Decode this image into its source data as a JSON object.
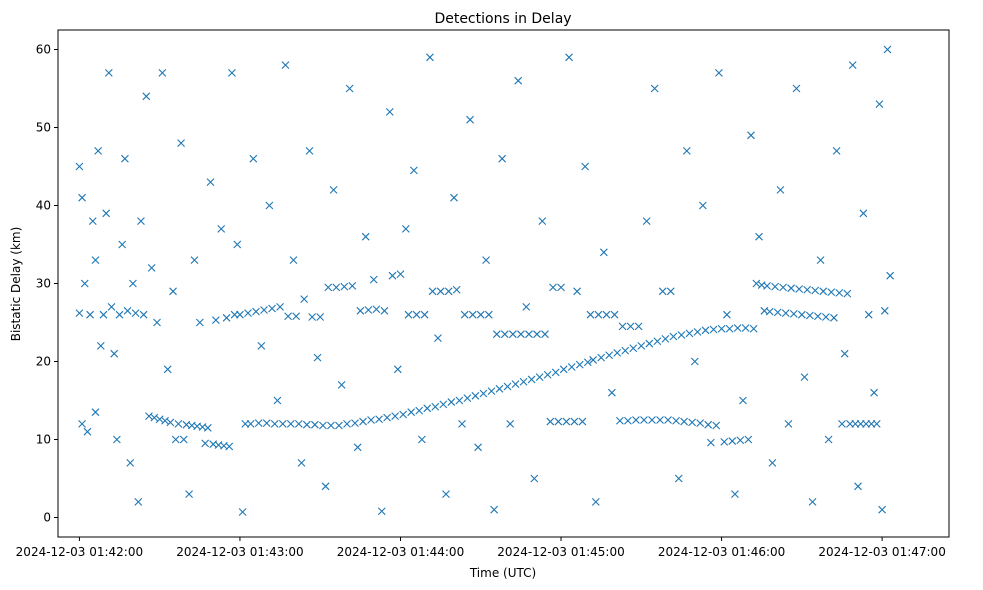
{
  "chart_data": {
    "type": "scatter",
    "title": "Detections in Delay",
    "xlabel": "Time (UTC)",
    "ylabel": "Bistatic Delay (km)",
    "x_unit": "seconds after 2024-12-03 01:42:00 UTC",
    "xlim": [
      -8,
      325
    ],
    "ylim": [
      -2.5,
      62.5
    ],
    "x_ticks": [
      {
        "value": 0,
        "label": "2024-12-03 01:42:00"
      },
      {
        "value": 60,
        "label": "2024-12-03 01:43:00"
      },
      {
        "value": 120,
        "label": "2024-12-03 01:44:00"
      },
      {
        "value": 180,
        "label": "2024-12-03 01:45:00"
      },
      {
        "value": 240,
        "label": "2024-12-03 01:46:00"
      },
      {
        "value": 300,
        "label": "2024-12-03 01:47:00"
      }
    ],
    "y_ticks": [
      0,
      10,
      20,
      30,
      40,
      50,
      60
    ],
    "marker": "x",
    "color": "#1f77b4",
    "grid": false,
    "series": [
      {
        "points": [
          [
            0.0,
            26.2
          ],
          [
            0.0,
            45.0
          ],
          [
            1.0,
            12.0
          ],
          [
            1.0,
            41.0
          ],
          [
            2.0,
            30.0
          ],
          [
            3.0,
            11.0
          ],
          [
            4.0,
            26.0
          ],
          [
            5.0,
            38.0
          ],
          [
            6.0,
            33.0
          ],
          [
            6.0,
            13.5
          ],
          [
            7.0,
            47.0
          ],
          [
            8.0,
            22.0
          ],
          [
            9.0,
            26.0
          ],
          [
            10.0,
            39.0
          ],
          [
            11.0,
            57.0
          ],
          [
            12.0,
            27.0
          ],
          [
            13.0,
            21.0
          ],
          [
            14.0,
            10.0
          ],
          [
            15.0,
            26.0
          ],
          [
            16.0,
            35.0
          ],
          [
            17.0,
            46.0
          ],
          [
            18.0,
            26.5
          ],
          [
            19.0,
            7.0
          ],
          [
            20.0,
            30.0
          ],
          [
            21.0,
            26.2
          ],
          [
            22.0,
            2.0
          ],
          [
            23.0,
            38.0
          ],
          [
            24.0,
            26.0
          ],
          [
            25.0,
            54.0
          ],
          [
            26.0,
            13.0
          ],
          [
            27.0,
            32.0
          ],
          [
            28.0,
            12.8
          ],
          [
            29.0,
            25.0
          ],
          [
            30.0,
            12.6
          ],
          [
            31.0,
            57.0
          ],
          [
            32.0,
            12.4
          ],
          [
            33.0,
            19.0
          ],
          [
            34.0,
            12.2
          ],
          [
            35.0,
            29.0
          ],
          [
            36.0,
            10.0
          ],
          [
            37.0,
            12.0
          ],
          [
            38.0,
            48.0
          ],
          [
            39.0,
            10.0
          ],
          [
            40.0,
            11.9
          ],
          [
            41.0,
            3.0
          ],
          [
            42.0,
            11.8
          ],
          [
            43.0,
            33.0
          ],
          [
            44.0,
            11.7
          ],
          [
            45.0,
            25.0
          ],
          [
            46.0,
            11.6
          ],
          [
            47.0,
            9.5
          ],
          [
            48.0,
            11.5
          ],
          [
            49.0,
            43.0
          ],
          [
            50.0,
            9.4
          ],
          [
            51.0,
            25.3
          ],
          [
            52.0,
            9.3
          ],
          [
            53.0,
            37.0
          ],
          [
            54.0,
            9.2
          ],
          [
            55.0,
            25.6
          ],
          [
            56.0,
            9.1
          ],
          [
            57.0,
            57.0
          ],
          [
            58.0,
            26.0
          ],
          [
            59.0,
            35.0
          ],
          [
            60.0,
            26.0
          ],
          [
            61.0,
            0.7
          ],
          [
            62.0,
            12.0
          ],
          [
            63.0,
            26.2
          ],
          [
            64.0,
            12.0
          ],
          [
            65.0,
            46.0
          ],
          [
            66.0,
            26.4
          ],
          [
            67.0,
            12.1
          ],
          [
            68.0,
            22.0
          ],
          [
            69.0,
            26.6
          ],
          [
            70.0,
            12.1
          ],
          [
            71.0,
            40.0
          ],
          [
            72.0,
            26.8
          ],
          [
            73.0,
            12.0
          ],
          [
            74.0,
            15.0
          ],
          [
            75.0,
            27.0
          ],
          [
            76.0,
            12.0
          ],
          [
            77.0,
            58.0
          ],
          [
            78.0,
            25.8
          ],
          [
            79.0,
            12.0
          ],
          [
            80.0,
            33.0
          ],
          [
            81.0,
            25.8
          ],
          [
            82.0,
            12.0
          ],
          [
            83.0,
            7.0
          ],
          [
            84.0,
            28.0
          ],
          [
            85.0,
            11.9
          ],
          [
            86.0,
            47.0
          ],
          [
            87.0,
            25.7
          ],
          [
            88.0,
            11.9
          ],
          [
            89.0,
            20.5
          ],
          [
            90.0,
            25.7
          ],
          [
            91.0,
            11.8
          ],
          [
            92.0,
            4.0
          ],
          [
            93.0,
            29.5
          ],
          [
            94.0,
            11.8
          ],
          [
            95.0,
            42.0
          ],
          [
            96.0,
            29.5
          ],
          [
            97.0,
            11.8
          ],
          [
            98.0,
            17.0
          ],
          [
            99.0,
            29.6
          ],
          [
            100.0,
            12.0
          ],
          [
            101.0,
            55.0
          ],
          [
            102.0,
            29.7
          ],
          [
            103.0,
            12.1
          ],
          [
            104.0,
            9.0
          ],
          [
            105.0,
            26.5
          ],
          [
            106.0,
            12.3
          ],
          [
            107.0,
            36.0
          ],
          [
            108.0,
            26.6
          ],
          [
            109.0,
            12.5
          ],
          [
            110.0,
            30.5
          ],
          [
            111.0,
            26.7
          ],
          [
            112.0,
            12.6
          ],
          [
            113.0,
            0.8
          ],
          [
            114.0,
            26.5
          ],
          [
            115.0,
            12.8
          ],
          [
            116.0,
            52.0
          ],
          [
            117.0,
            31.0
          ],
          [
            118.0,
            13.0
          ],
          [
            119.0,
            19.0
          ],
          [
            120.0,
            31.2
          ],
          [
            121.0,
            13.2
          ],
          [
            122.0,
            37.0
          ],
          [
            123.0,
            26.0
          ],
          [
            124.0,
            13.5
          ],
          [
            125.0,
            44.5
          ],
          [
            126.0,
            26.0
          ],
          [
            127.0,
            13.7
          ],
          [
            128.0,
            10.0
          ],
          [
            129.0,
            26.0
          ],
          [
            130.0,
            14.0
          ],
          [
            131.0,
            59.0
          ],
          [
            132.0,
            29.0
          ],
          [
            133.0,
            14.2
          ],
          [
            134.0,
            23.0
          ],
          [
            135.0,
            29.0
          ],
          [
            136.0,
            14.5
          ],
          [
            137.0,
            3.0
          ],
          [
            138.0,
            29.0
          ],
          [
            139.0,
            14.8
          ],
          [
            140.0,
            41.0
          ],
          [
            141.0,
            29.2
          ],
          [
            142.0,
            15.0
          ],
          [
            143.0,
            12.0
          ],
          [
            144.0,
            26.0
          ],
          [
            145.0,
            15.3
          ],
          [
            146.0,
            51.0
          ],
          [
            147.0,
            26.0
          ],
          [
            148.0,
            15.6
          ],
          [
            149.0,
            9.0
          ],
          [
            150.0,
            26.0
          ],
          [
            151.0,
            15.9
          ],
          [
            152.0,
            33.0
          ],
          [
            153.0,
            26.0
          ],
          [
            154.0,
            16.2
          ],
          [
            155.0,
            1.0
          ],
          [
            156.0,
            23.5
          ],
          [
            157.0,
            16.5
          ],
          [
            158.0,
            46.0
          ],
          [
            159.0,
            23.5
          ],
          [
            160.0,
            16.8
          ],
          [
            161.0,
            12.0
          ],
          [
            162.0,
            23.5
          ],
          [
            163.0,
            17.1
          ],
          [
            164.0,
            56.0
          ],
          [
            165.0,
            23.5
          ],
          [
            166.0,
            17.4
          ],
          [
            167.0,
            27.0
          ],
          [
            168.0,
            23.5
          ],
          [
            169.0,
            17.7
          ],
          [
            170.0,
            5.0
          ],
          [
            171.0,
            23.5
          ],
          [
            172.0,
            18.0
          ],
          [
            173.0,
            38.0
          ],
          [
            174.0,
            23.5
          ],
          [
            175.0,
            18.3
          ],
          [
            176.0,
            12.3
          ],
          [
            177.0,
            29.5
          ],
          [
            178.0,
            18.6
          ],
          [
            179.0,
            12.3
          ],
          [
            180.0,
            29.5
          ],
          [
            181.0,
            19.0
          ],
          [
            182.0,
            12.3
          ],
          [
            183.0,
            59.0
          ],
          [
            184.0,
            19.3
          ],
          [
            185.0,
            12.3
          ],
          [
            186.0,
            29.0
          ],
          [
            187.0,
            19.6
          ],
          [
            188.0,
            12.3
          ],
          [
            189.0,
            45.0
          ],
          [
            190.0,
            19.9
          ],
          [
            191.0,
            26.0
          ],
          [
            192.0,
            20.2
          ],
          [
            193.0,
            2.0
          ],
          [
            194.0,
            26.0
          ],
          [
            195.0,
            20.5
          ],
          [
            196.0,
            34.0
          ],
          [
            197.0,
            26.0
          ],
          [
            198.0,
            20.8
          ],
          [
            199.0,
            16.0
          ],
          [
            200.0,
            26.0
          ],
          [
            201.0,
            21.1
          ],
          [
            202.0,
            12.4
          ],
          [
            203.0,
            24.5
          ],
          [
            204.0,
            21.4
          ],
          [
            205.0,
            12.4
          ],
          [
            206.0,
            24.5
          ],
          [
            207.0,
            21.7
          ],
          [
            208.0,
            12.5
          ],
          [
            209.0,
            24.5
          ],
          [
            210.0,
            22.0
          ],
          [
            211.0,
            12.5
          ],
          [
            212.0,
            38.0
          ],
          [
            213.0,
            22.3
          ],
          [
            214.0,
            12.5
          ],
          [
            215.0,
            55.0
          ],
          [
            216.0,
            22.6
          ],
          [
            217.0,
            12.5
          ],
          [
            218.0,
            29.0
          ],
          [
            219.0,
            22.9
          ],
          [
            220.0,
            12.5
          ],
          [
            221.0,
            29.0
          ],
          [
            222.0,
            23.2
          ],
          [
            223.0,
            12.4
          ],
          [
            224.0,
            5.0
          ],
          [
            225.0,
            23.4
          ],
          [
            226.0,
            12.3
          ],
          [
            227.0,
            47.0
          ],
          [
            228.0,
            23.6
          ],
          [
            229.0,
            12.2
          ],
          [
            230.0,
            20.0
          ],
          [
            231.0,
            23.8
          ],
          [
            232.0,
            12.1
          ],
          [
            233.0,
            40.0
          ],
          [
            234.0,
            24.0
          ],
          [
            235.0,
            11.9
          ],
          [
            236.0,
            9.6
          ],
          [
            237.0,
            24.1
          ],
          [
            238.0,
            11.8
          ],
          [
            239.0,
            57.0
          ],
          [
            240.0,
            24.2
          ],
          [
            241.0,
            9.7
          ],
          [
            242.0,
            26.0
          ],
          [
            243.0,
            24.2
          ],
          [
            244.0,
            9.8
          ],
          [
            245.0,
            3.0
          ],
          [
            246.0,
            24.3
          ],
          [
            247.0,
            9.9
          ],
          [
            248.0,
            15.0
          ],
          [
            249.0,
            24.3
          ],
          [
            250.0,
            10.0
          ],
          [
            251.0,
            49.0
          ],
          [
            252.0,
            24.2
          ],
          [
            253.0,
            30.0
          ],
          [
            254.0,
            36.0
          ],
          [
            255.0,
            29.8
          ],
          [
            256.0,
            26.5
          ],
          [
            257.0,
            29.7
          ],
          [
            258.0,
            26.4
          ],
          [
            259.0,
            7.0
          ],
          [
            260.0,
            29.6
          ],
          [
            261.0,
            26.3
          ],
          [
            262.0,
            42.0
          ],
          [
            263.0,
            29.5
          ],
          [
            264.0,
            26.2
          ],
          [
            265.0,
            12.0
          ],
          [
            266.0,
            29.4
          ],
          [
            267.0,
            26.1
          ],
          [
            268.0,
            55.0
          ],
          [
            269.0,
            29.3
          ],
          [
            270.0,
            26.0
          ],
          [
            271.0,
            18.0
          ],
          [
            272.0,
            29.2
          ],
          [
            273.0,
            25.9
          ],
          [
            274.0,
            2.0
          ],
          [
            275.0,
            29.1
          ],
          [
            276.0,
            25.8
          ],
          [
            277.0,
            33.0
          ],
          [
            278.0,
            29.0
          ],
          [
            279.0,
            25.7
          ],
          [
            280.0,
            10.0
          ],
          [
            281.0,
            28.9
          ],
          [
            282.0,
            25.6
          ],
          [
            283.0,
            47.0
          ],
          [
            284.0,
            28.8
          ],
          [
            285.0,
            12.0
          ],
          [
            286.0,
            21.0
          ],
          [
            287.0,
            28.7
          ],
          [
            288.0,
            12.0
          ],
          [
            289.0,
            58.0
          ],
          [
            290.0,
            12.0
          ],
          [
            291.0,
            4.0
          ],
          [
            292.0,
            12.0
          ],
          [
            293.0,
            39.0
          ],
          [
            294.0,
            12.0
          ],
          [
            295.0,
            26.0
          ],
          [
            296.0,
            12.0
          ],
          [
            297.0,
            16.0
          ],
          [
            298.0,
            12.0
          ],
          [
            299.0,
            53.0
          ],
          [
            300.0,
            1.0
          ],
          [
            301.0,
            26.5
          ],
          [
            302.0,
            60.0
          ],
          [
            303.0,
            31.0
          ]
        ]
      }
    ]
  }
}
